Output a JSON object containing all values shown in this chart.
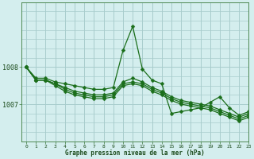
{
  "background_color": "#d4eeee",
  "line_color": "#1a6e1a",
  "grid_color": "#a8cccc",
  "xlabel": "Graphe pression niveau de la mer (hPa)",
  "xlim": [
    -0.5,
    23
  ],
  "ylim": [
    1006.2,
    1009.4
  ],
  "yticks": [
    1007,
    1008
  ],
  "xticks": [
    0,
    1,
    2,
    3,
    4,
    5,
    6,
    7,
    8,
    9,
    10,
    11,
    12,
    13,
    14,
    15,
    16,
    17,
    18,
    19,
    20,
    21,
    22,
    23
  ],
  "series": [
    [
      1008.0,
      1007.7,
      1007.7,
      1007.6,
      1007.55,
      1007.5,
      1007.45,
      1007.4,
      1007.4,
      1007.45,
      1008.45,
      1009.1,
      1007.95,
      1007.65,
      1007.55,
      1006.75,
      1006.8,
      1006.85,
      1006.9,
      1007.05,
      1007.2,
      1006.9,
      1006.7,
      1006.8
    ],
    [
      1008.0,
      1007.65,
      1007.65,
      1007.55,
      1007.45,
      1007.35,
      1007.3,
      1007.25,
      1007.25,
      1007.3,
      1007.6,
      1007.7,
      1007.6,
      1007.45,
      1007.35,
      1007.2,
      1007.1,
      1007.05,
      1007.0,
      1006.95,
      1006.85,
      1006.75,
      1006.65,
      1006.75
    ],
    [
      1008.0,
      1007.65,
      1007.65,
      1007.55,
      1007.4,
      1007.3,
      1007.25,
      1007.2,
      1007.2,
      1007.25,
      1007.55,
      1007.6,
      1007.55,
      1007.4,
      1007.3,
      1007.15,
      1007.05,
      1007.0,
      1006.95,
      1006.9,
      1006.8,
      1006.7,
      1006.6,
      1006.7
    ],
    [
      1008.0,
      1007.65,
      1007.65,
      1007.5,
      1007.35,
      1007.25,
      1007.2,
      1007.15,
      1007.15,
      1007.2,
      1007.5,
      1007.55,
      1007.5,
      1007.35,
      1007.25,
      1007.1,
      1007.0,
      1006.95,
      1006.9,
      1006.85,
      1006.75,
      1006.65,
      1006.55,
      1006.65
    ]
  ],
  "marker_size": 2.5,
  "line_width": 0.9
}
